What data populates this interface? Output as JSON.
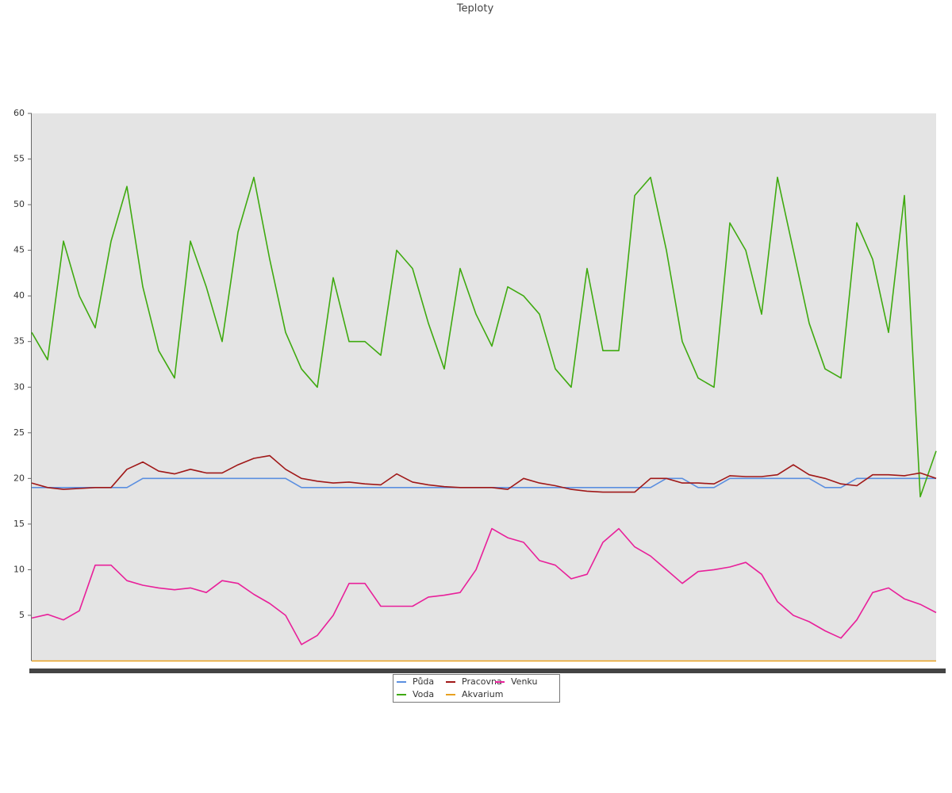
{
  "chart_data": {
    "type": "line",
    "title": "Teploty",
    "ylim": [
      0,
      60
    ],
    "yticks": [
      5,
      10,
      15,
      20,
      25,
      30,
      35,
      40,
      45,
      50,
      55,
      60
    ],
    "series": [
      {
        "name": "Půda",
        "color": "#5b8fe0",
        "values": [
          19,
          19,
          19,
          19,
          19,
          19,
          19,
          20,
          20,
          20,
          20,
          20,
          20,
          20,
          20,
          20,
          20,
          19,
          19,
          19,
          19,
          19,
          19,
          19,
          19,
          19,
          19,
          19,
          19,
          19,
          19,
          19,
          19,
          19,
          19,
          19,
          19,
          19,
          19,
          19,
          20,
          20,
          19,
          19,
          20,
          20,
          20,
          20,
          20,
          20,
          19,
          19,
          20,
          20,
          20,
          20,
          20,
          20
        ]
      },
      {
        "name": "Voda",
        "color": "#3faa10",
        "values": [
          36,
          33,
          46,
          40,
          36.5,
          46,
          52,
          41,
          34,
          31,
          46,
          41,
          35,
          47,
          53,
          44,
          36,
          32,
          30,
          42,
          35,
          35,
          33.5,
          45,
          43,
          37,
          32,
          43,
          38,
          34.5,
          41,
          40,
          38,
          32,
          30,
          43,
          34,
          34,
          51,
          53,
          45,
          35,
          31,
          30,
          48,
          45,
          38,
          53,
          45,
          37,
          32,
          31,
          48,
          44,
          36,
          51,
          18,
          23
        ]
      },
      {
        "name": "Pracovna",
        "color": "#a01818",
        "values": [
          19.5,
          19,
          18.8,
          18.9,
          19,
          19,
          21,
          21.8,
          20.8,
          20.5,
          21,
          20.6,
          20.6,
          21.5,
          22.2,
          22.5,
          21,
          20,
          19.7,
          19.5,
          19.6,
          19.4,
          19.3,
          20.5,
          19.6,
          19.3,
          19.1,
          19,
          19,
          19,
          18.8,
          20,
          19.5,
          19.2,
          18.8,
          18.6,
          18.5,
          18.5,
          18.5,
          20,
          20,
          19.5,
          19.5,
          19.4,
          20.3,
          20.2,
          20.2,
          20.4,
          21.5,
          20.4,
          20,
          19.4,
          19.2,
          20.4,
          20.4,
          20.3,
          20.6,
          20
        ]
      },
      {
        "name": "Akvarium",
        "color": "#e8a020",
        "values": [
          0,
          0,
          0,
          0,
          0,
          0,
          0,
          0,
          0,
          0,
          0,
          0,
          0,
          0,
          0,
          0,
          0,
          0,
          0,
          0,
          0,
          0,
          0,
          0,
          0,
          0,
          0,
          0,
          0,
          0,
          0,
          0,
          0,
          0,
          0,
          0,
          0,
          0,
          0,
          0,
          0,
          0,
          0,
          0,
          0,
          0,
          0,
          0,
          0,
          0,
          0,
          0,
          0,
          0,
          0,
          0,
          0,
          0
        ]
      },
      {
        "name": "Venku",
        "color": "#e8209a",
        "values": [
          4.7,
          5.1,
          4.5,
          5.5,
          10.5,
          10.5,
          8.8,
          8.3,
          8,
          7.8,
          8,
          7.5,
          8.8,
          8.5,
          7.3,
          6.3,
          5,
          1.8,
          2.8,
          5,
          8.5,
          8.5,
          6,
          6,
          6,
          7,
          7.2,
          7.5,
          10,
          14.5,
          13.5,
          13,
          11,
          10.5,
          9,
          9.5,
          13,
          14.5,
          12.5,
          11.5,
          10,
          8.5,
          9.8,
          10,
          10.3,
          10.8,
          9.5,
          6.5,
          5,
          4.3,
          3.3,
          2.5,
          4.5,
          7.5,
          8,
          6.8,
          6.2,
          5.3
        ]
      }
    ]
  }
}
